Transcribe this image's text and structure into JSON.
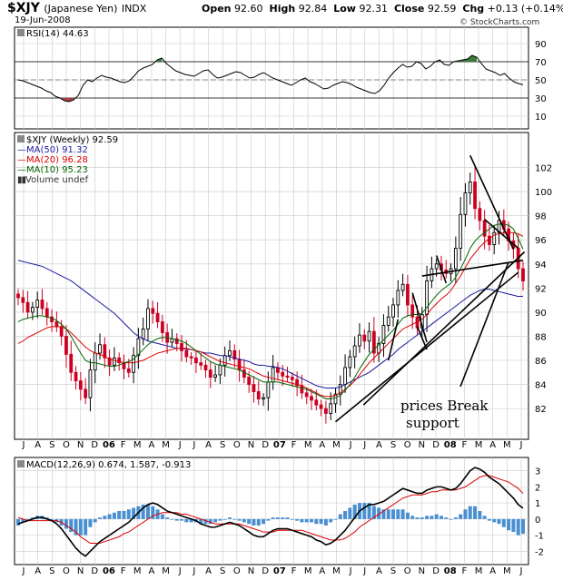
{
  "header": {
    "symbol": "$XJY",
    "name": "(Japanese Yen)",
    "exchange": "INDX",
    "date": "19-Jun-2008",
    "open_label": "Open",
    "open": "92.60",
    "high_label": "High",
    "high": "92.84",
    "low_label": "Low",
    "low": "92.31",
    "close_label": "Close",
    "close": "92.59",
    "chg_label": "Chg",
    "chg": "+0.13 (+0.14%)",
    "watermark": "© StockCharts.com"
  },
  "colors": {
    "bull": "#000000",
    "bear": "#cc0022",
    "ma50": "#1a1aa0",
    "ma20": "#dd0000",
    "ma10": "#006600",
    "rsi_green": "#3a7a3a",
    "rsi_red": "#b04040",
    "hist": "#4a8fd0",
    "grid": "#c8c8c8",
    "signal": "#dd0000"
  },
  "chart_data": [
    {
      "type": "line",
      "panel": "RSI",
      "title": "RSI(14) 44.63",
      "ylim": [
        0,
        100
      ],
      "ticks": [
        10,
        30,
        50,
        70,
        90
      ],
      "overbought": 70,
      "oversold": 30,
      "series": [
        {
          "name": "RSI(14)",
          "values": [
            50,
            49,
            47,
            45,
            43,
            41,
            38,
            36,
            32,
            30,
            27,
            26,
            28,
            33,
            44,
            50,
            48,
            52,
            55,
            53,
            52,
            50,
            48,
            47,
            49,
            54,
            60,
            63,
            65,
            67,
            72,
            74,
            68,
            64,
            60,
            58,
            56,
            55,
            54,
            57,
            60,
            61,
            56,
            52,
            53,
            55,
            57,
            59,
            58,
            55,
            52,
            53,
            56,
            58,
            55,
            52,
            50,
            48,
            46,
            44,
            47,
            50,
            52,
            48,
            46,
            43,
            40,
            41,
            44,
            46,
            48,
            47,
            45,
            42,
            40,
            38,
            36,
            35,
            38,
            44,
            52,
            58,
            63,
            67,
            64,
            65,
            70,
            68,
            62,
            65,
            70,
            72,
            67,
            66,
            70,
            71,
            72,
            73,
            77,
            75,
            68,
            62,
            60,
            58,
            55,
            57,
            52,
            48,
            46,
            44.6
          ]
        }
      ]
    },
    {
      "type": "candlestick",
      "panel": "price",
      "title": "$XJY (Weekly) 92.59",
      "ylim": [
        79.6,
        104.6
      ],
      "ticks": [
        82,
        84,
        86,
        88,
        90,
        92,
        94,
        96,
        98,
        100,
        102
      ],
      "legend": [
        "MA(50) 91.32",
        "MA(20) 96.28",
        "MA(10) 95.23",
        "Volume undef"
      ],
      "x_labels": [
        "J",
        "A",
        "S",
        "O",
        "N",
        "D",
        "06",
        "F",
        "M",
        "A",
        "M",
        "J",
        "J",
        "A",
        "S",
        "O",
        "N",
        "D",
        "07",
        "F",
        "M",
        "A",
        "M",
        "J",
        "J",
        "A",
        "S",
        "O",
        "N",
        "D",
        "08",
        "F",
        "M",
        "A",
        "M",
        "J"
      ],
      "closes": [
        91.2,
        90.8,
        90.0,
        90.4,
        91.0,
        90.3,
        89.6,
        89.2,
        88.8,
        88.0,
        86.5,
        85.0,
        84.3,
        83.6,
        82.9,
        85.2,
        86.6,
        87.3,
        86.2,
        85.6,
        86.2,
        85.8,
        85.3,
        85.0,
        86.4,
        87.8,
        88.6,
        90.3,
        89.9,
        89.2,
        88.3,
        87.5,
        87.8,
        87.4,
        86.8,
        86.3,
        86.2,
        85.8,
        85.6,
        85.2,
        84.6,
        84.8,
        85.6,
        86.4,
        86.8,
        86.1,
        85.2,
        84.6,
        84.0,
        83.4,
        82.8,
        82.9,
        84.2,
        85.4,
        85.0,
        84.7,
        84.6,
        84.4,
        83.9,
        83.3,
        83.0,
        82.7,
        82.3,
        82.0,
        81.6,
        82.4,
        83.2,
        84.0,
        85.4,
        86.3,
        87.2,
        88.1,
        87.6,
        88.4,
        86.6,
        87.4,
        88.9,
        89.6,
        90.6,
        91.8,
        92.3,
        90.6,
        89.6,
        88.7,
        89.8,
        92.6,
        93.6,
        94.0,
        93.5,
        93.2,
        93.6,
        95.3,
        98.1,
        99.9,
        100.8,
        98.6,
        97.6,
        96.3,
        95.6,
        96.6,
        97.6,
        96.9,
        95.9,
        95.3,
        93.6,
        92.59
      ],
      "ma10": [
        89.2,
        89.4,
        89.5,
        89.6,
        89.7,
        89.7,
        89.6,
        89.5,
        89.3,
        89.0,
        88.6,
        88.0,
        87.3,
        86.6,
        86.0,
        85.8,
        85.8,
        85.7,
        85.6,
        85.5,
        85.5,
        85.6,
        85.8,
        85.9,
        86.1,
        86.5,
        86.9,
        87.3,
        87.6,
        87.8,
        87.9,
        87.9,
        87.8,
        87.7,
        87.6,
        87.4,
        87.1,
        86.8,
        86.5,
        86.2,
        85.9,
        85.7,
        85.6,
        85.5,
        85.4,
        85.3,
        85.2,
        85.0,
        84.8,
        84.6,
        84.4,
        84.2,
        84.2,
        84.2,
        84.2,
        84.1,
        84.0,
        83.9,
        83.8,
        83.7,
        83.6,
        83.4,
        83.2,
        83.0,
        82.8,
        82.8,
        82.9,
        83.1,
        83.5,
        84.0,
        84.6,
        85.3,
        85.9,
        86.5,
        86.9,
        87.3,
        87.7,
        88.1,
        88.5,
        89.0,
        89.5,
        89.7,
        89.8,
        89.8,
        89.9,
        90.4,
        90.9,
        91.4,
        91.8,
        92.1,
        92.4,
        92.9,
        93.6,
        94.4,
        95.3,
        95.9,
        96.3,
        96.6,
        96.9,
        97.2,
        97.3,
        97.3,
        97.2,
        96.9,
        96.1,
        95.23
      ],
      "ma20": [
        87.4,
        87.6,
        87.9,
        88.1,
        88.3,
        88.5,
        88.7,
        88.8,
        88.8,
        88.8,
        88.6,
        88.3,
        87.9,
        87.5,
        87.1,
        86.8,
        86.6,
        86.5,
        86.3,
        86.1,
        86.0,
        85.9,
        85.8,
        85.8,
        85.8,
        85.9,
        86.0,
        86.2,
        86.4,
        86.6,
        86.7,
        86.8,
        86.9,
        87.0,
        87.0,
        87.0,
        86.9,
        86.8,
        86.7,
        86.5,
        86.3,
        86.1,
        85.9,
        85.8,
        85.7,
        85.6,
        85.5,
        85.4,
        85.3,
        85.1,
        84.9,
        84.7,
        84.6,
        84.5,
        84.4,
        84.3,
        84.2,
        84.1,
        84.0,
        83.9,
        83.7,
        83.5,
        83.3,
        83.1,
        83.0,
        83.0,
        83.1,
        83.3,
        83.6,
        83.9,
        84.3,
        84.8,
        85.3,
        85.8,
        86.2,
        86.6,
        87.0,
        87.4,
        87.8,
        88.2,
        88.6,
        88.8,
        89.0,
        89.2,
        89.4,
        89.8,
        90.3,
        90.7,
        91.1,
        91.4,
        91.8,
        92.4,
        93.0,
        93.7,
        94.4,
        94.9,
        95.4,
        95.8,
        96.1,
        96.4,
        96.5,
        96.6,
        96.6,
        96.6,
        96.5,
        96.28
      ],
      "ma50": [
        94.3,
        94.2,
        94.1,
        94.0,
        93.9,
        93.8,
        93.6,
        93.4,
        93.2,
        93.0,
        92.8,
        92.6,
        92.3,
        92.0,
        91.7,
        91.4,
        91.1,
        90.8,
        90.5,
        90.2,
        89.9,
        89.5,
        89.1,
        88.7,
        88.3,
        88.0,
        87.8,
        87.6,
        87.5,
        87.4,
        87.3,
        87.2,
        87.1,
        87.0,
        87.0,
        86.9,
        86.9,
        86.8,
        86.7,
        86.6,
        86.6,
        86.5,
        86.4,
        86.4,
        86.3,
        86.2,
        86.1,
        86.0,
        85.9,
        85.7,
        85.6,
        85.6,
        85.5,
        85.5,
        85.4,
        85.3,
        85.1,
        84.9,
        84.7,
        84.5,
        84.3,
        84.1,
        83.9,
        83.8,
        83.7,
        83.7,
        83.7,
        83.8,
        84.0,
        84.2,
        84.4,
        84.6,
        84.8,
        85.0,
        85.3,
        85.6,
        85.9,
        86.2,
        86.5,
        86.9,
        87.2,
        87.5,
        87.8,
        88.1,
        88.4,
        88.7,
        89.0,
        89.3,
        89.6,
        89.9,
        90.2,
        90.5,
        90.8,
        91.1,
        91.4,
        91.6,
        91.8,
        91.9,
        91.9,
        91.8,
        91.7,
        91.6,
        91.5,
        91.4,
        91.3,
        91.32
      ],
      "annotation": "prices Break support"
    },
    {
      "type": "line",
      "panel": "MACD",
      "title": "MACD(12,26,9) 0.674, 1.587, -0.913",
      "ylim": [
        -2.6,
        3.6
      ],
      "ticks": [
        -2,
        -1,
        0,
        1,
        2,
        3
      ],
      "series": [
        {
          "name": "MACD",
          "values": [
            -0.3,
            -0.2,
            -0.1,
            0.0,
            0.1,
            0.1,
            0.0,
            -0.1,
            -0.3,
            -0.6,
            -1.0,
            -1.4,
            -1.8,
            -2.1,
            -2.3,
            -2.0,
            -1.7,
            -1.4,
            -1.2,
            -1.0,
            -0.8,
            -0.6,
            -0.4,
            -0.2,
            0.1,
            0.4,
            0.7,
            0.9,
            1.0,
            0.9,
            0.7,
            0.5,
            0.4,
            0.3,
            0.2,
            0.1,
            0.0,
            -0.1,
            -0.3,
            -0.4,
            -0.5,
            -0.5,
            -0.4,
            -0.3,
            -0.2,
            -0.3,
            -0.4,
            -0.6,
            -0.8,
            -1.0,
            -1.1,
            -1.1,
            -0.9,
            -0.7,
            -0.6,
            -0.6,
            -0.6,
            -0.7,
            -0.8,
            -0.9,
            -1.0,
            -1.1,
            -1.3,
            -1.4,
            -1.6,
            -1.5,
            -1.3,
            -1.0,
            -0.7,
            -0.3,
            0.1,
            0.5,
            0.7,
            0.9,
            0.9,
            1.0,
            1.1,
            1.3,
            1.5,
            1.7,
            1.9,
            1.8,
            1.7,
            1.6,
            1.6,
            1.8,
            1.9,
            2.0,
            2.0,
            1.9,
            1.8,
            1.9,
            2.2,
            2.6,
            3.0,
            3.2,
            3.1,
            2.9,
            2.6,
            2.4,
            2.2,
            1.9,
            1.6,
            1.3,
            0.9,
            0.674
          ]
        },
        {
          "name": "Signal",
          "values": [
            0.1,
            0.0,
            -0.1,
            -0.1,
            -0.1,
            -0.1,
            -0.1,
            -0.1,
            -0.1,
            -0.2,
            -0.4,
            -0.6,
            -0.8,
            -1.1,
            -1.3,
            -1.5,
            -1.5,
            -1.5,
            -1.4,
            -1.3,
            -1.2,
            -1.1,
            -0.9,
            -0.8,
            -0.6,
            -0.4,
            -0.2,
            0.0,
            0.2,
            0.3,
            0.4,
            0.4,
            0.4,
            0.4,
            0.3,
            0.3,
            0.2,
            0.1,
            0.0,
            -0.1,
            -0.2,
            -0.3,
            -0.3,
            -0.3,
            -0.3,
            -0.3,
            -0.3,
            -0.4,
            -0.5,
            -0.6,
            -0.7,
            -0.8,
            -0.8,
            -0.8,
            -0.7,
            -0.7,
            -0.7,
            -0.7,
            -0.7,
            -0.7,
            -0.8,
            -0.9,
            -1.0,
            -1.1,
            -1.2,
            -1.3,
            -1.3,
            -1.3,
            -1.2,
            -1.0,
            -0.8,
            -0.5,
            -0.3,
            -0.1,
            0.1,
            0.3,
            0.5,
            0.7,
            0.9,
            1.1,
            1.3,
            1.4,
            1.5,
            1.5,
            1.5,
            1.6,
            1.7,
            1.7,
            1.8,
            1.8,
            1.8,
            1.8,
            1.9,
            2.0,
            2.2,
            2.4,
            2.6,
            2.7,
            2.7,
            2.6,
            2.5,
            2.4,
            2.3,
            2.1,
            1.9,
            1.587
          ]
        },
        {
          "name": "Histogram",
          "values": [
            -0.4,
            -0.2,
            0.0,
            0.1,
            0.2,
            0.2,
            0.1,
            0.0,
            -0.2,
            -0.4,
            -0.6,
            -0.8,
            -1.0,
            -1.0,
            -1.0,
            -0.5,
            -0.2,
            0.1,
            0.2,
            0.3,
            0.4,
            0.5,
            0.5,
            0.6,
            0.7,
            0.8,
            0.9,
            0.9,
            0.8,
            0.6,
            0.3,
            0.1,
            0.0,
            -0.1,
            -0.1,
            -0.2,
            -0.2,
            -0.2,
            -0.3,
            -0.3,
            -0.3,
            -0.2,
            -0.1,
            0.0,
            0.1,
            0.0,
            -0.1,
            -0.2,
            -0.3,
            -0.4,
            -0.4,
            -0.3,
            -0.1,
            0.1,
            0.1,
            0.1,
            0.1,
            0.0,
            -0.1,
            -0.2,
            -0.2,
            -0.2,
            -0.3,
            -0.3,
            -0.4,
            -0.2,
            0.0,
            0.3,
            0.5,
            0.7,
            0.9,
            1.0,
            1.0,
            1.0,
            0.8,
            0.7,
            0.6,
            0.6,
            0.6,
            0.6,
            0.6,
            0.4,
            0.2,
            0.1,
            0.1,
            0.2,
            0.2,
            0.3,
            0.2,
            0.1,
            0.0,
            0.1,
            0.3,
            0.6,
            0.8,
            0.8,
            0.5,
            0.2,
            -0.1,
            -0.2,
            -0.3,
            -0.5,
            -0.7,
            -0.8,
            -1.0,
            -0.913
          ]
        }
      ]
    }
  ]
}
